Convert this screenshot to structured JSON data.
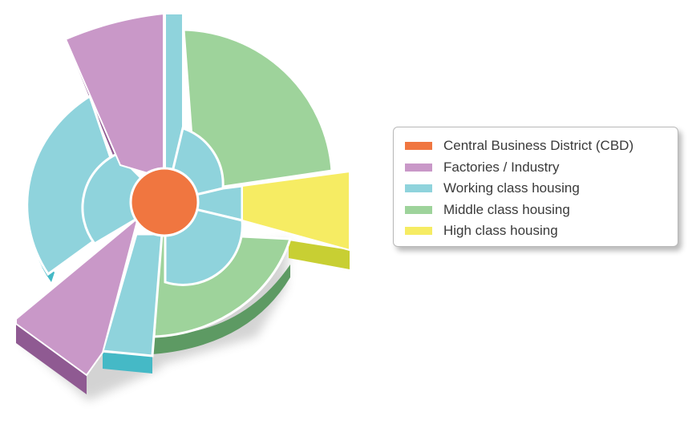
{
  "colors": {
    "cbd": "#f07640",
    "factories": "#c998c8",
    "factories_side": "#8f5a92",
    "working": "#8fd3dc",
    "working_side": "#45b9c6",
    "middle": "#9ed39b",
    "middle_side": "#5d9a63",
    "high": "#f6ec63",
    "high_side": "#c8cf33"
  },
  "legend": {
    "items": [
      {
        "label": "Central Business District (CBD)",
        "color": "#f07640"
      },
      {
        "label": "Factories / Industry",
        "color": "#c998c8"
      },
      {
        "label": "Working class housing",
        "color": "#8fd3dc"
      },
      {
        "label": "Middle class housing",
        "color": "#9ed39b"
      },
      {
        "label": "High class housing",
        "color": "#f6ec63"
      }
    ]
  }
}
